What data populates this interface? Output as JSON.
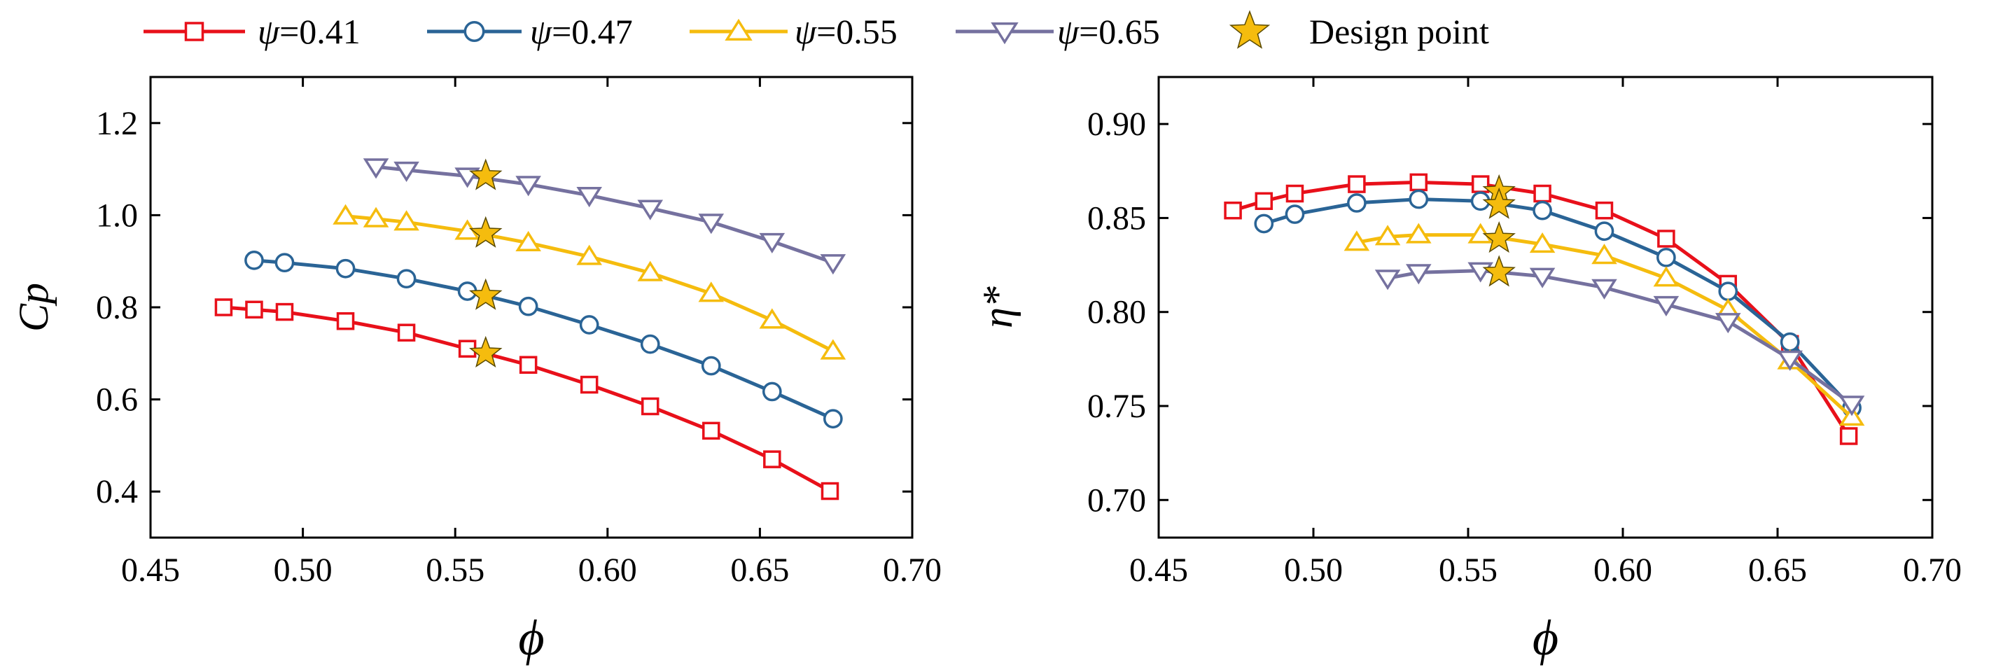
{
  "legend": [
    {
      "symbol": "ψ",
      "label": "=0.41",
      "color": "#e8101a",
      "marker": "square"
    },
    {
      "symbol": "ψ",
      "label": "=0.47",
      "color": "#2a6496",
      "marker": "circle"
    },
    {
      "symbol": "ψ",
      "label": "=0.55",
      "color": "#f5bc0e",
      "marker": "triangle-up"
    },
    {
      "symbol": "ψ",
      "label": "=0.65",
      "color": "#75719f",
      "marker": "triangle-down"
    },
    {
      "symbol": "",
      "label": "Design point",
      "color": "#f5bc0e",
      "marker": "star"
    }
  ],
  "chart_data": [
    {
      "type": "line",
      "xlabel": "ϕ",
      "ylabel": "Cp",
      "xlim": [
        0.45,
        0.7
      ],
      "ylim": [
        0.3,
        1.3
      ],
      "xticks": [
        "0.45",
        "0.50",
        "0.55",
        "0.60",
        "0.65",
        "0.70"
      ],
      "yticks": [
        "0.4",
        "0.6",
        "0.8",
        "1.0",
        "1.2"
      ],
      "grid": false,
      "series": [
        {
          "name": "ψ=0.41",
          "color": "#e8101a",
          "marker": "square",
          "x": [
            0.474,
            0.484,
            0.494,
            0.514,
            0.534,
            0.554,
            0.574,
            0.594,
            0.614,
            0.634,
            0.654,
            0.673
          ],
          "y": [
            0.8,
            0.795,
            0.79,
            0.77,
            0.745,
            0.71,
            0.675,
            0.632,
            0.585,
            0.532,
            0.47,
            0.401
          ]
        },
        {
          "name": "ψ=0.47",
          "color": "#2a6496",
          "marker": "circle",
          "x": [
            0.484,
            0.494,
            0.514,
            0.534,
            0.554,
            0.574,
            0.594,
            0.614,
            0.634,
            0.654,
            0.674
          ],
          "y": [
            0.902,
            0.897,
            0.884,
            0.862,
            0.835,
            0.802,
            0.762,
            0.72,
            0.673,
            0.617,
            0.558
          ]
        },
        {
          "name": "ψ=0.55",
          "color": "#f5bc0e",
          "marker": "triangle-up",
          "x": [
            0.514,
            0.524,
            0.534,
            0.554,
            0.574,
            0.594,
            0.614,
            0.634,
            0.654,
            0.674
          ],
          "y": [
            0.998,
            0.992,
            0.985,
            0.965,
            0.94,
            0.91,
            0.875,
            0.83,
            0.772,
            0.705
          ]
        },
        {
          "name": "ψ=0.65",
          "color": "#75719f",
          "marker": "triangle-down",
          "x": [
            0.524,
            0.534,
            0.554,
            0.574,
            0.594,
            0.614,
            0.634,
            0.654,
            0.674
          ],
          "y": [
            1.105,
            1.098,
            1.085,
            1.067,
            1.043,
            1.015,
            0.985,
            0.943,
            0.897
          ]
        }
      ],
      "design_points": {
        "x": [
          0.56,
          0.56,
          0.56,
          0.56
        ],
        "y": [
          0.7,
          0.825,
          0.96,
          1.085
        ]
      }
    },
    {
      "type": "line",
      "xlabel": "ϕ",
      "ylabel": "η*",
      "xlim": [
        0.45,
        0.7
      ],
      "ylim": [
        0.68,
        0.925
      ],
      "xticks": [
        "0.45",
        "0.50",
        "0.55",
        "0.60",
        "0.65",
        "0.70"
      ],
      "yticks": [
        "0.70",
        "0.75",
        "0.80",
        "0.85",
        "0.90"
      ],
      "grid": false,
      "series": [
        {
          "name": "ψ=0.41",
          "color": "#e8101a",
          "marker": "square",
          "x": [
            0.474,
            0.484,
            0.494,
            0.514,
            0.534,
            0.554,
            0.574,
            0.594,
            0.614,
            0.634,
            0.654,
            0.673
          ],
          "y": [
            0.854,
            0.859,
            0.863,
            0.868,
            0.869,
            0.868,
            0.863,
            0.854,
            0.839,
            0.815,
            0.783,
            0.734
          ]
        },
        {
          "name": "ψ=0.47",
          "color": "#2a6496",
          "marker": "circle",
          "x": [
            0.484,
            0.494,
            0.514,
            0.534,
            0.554,
            0.574,
            0.594,
            0.614,
            0.634,
            0.654,
            0.674
          ],
          "y": [
            0.847,
            0.852,
            0.858,
            0.86,
            0.859,
            0.854,
            0.843,
            0.829,
            0.811,
            0.784,
            0.749
          ]
        },
        {
          "name": "ψ=0.55",
          "color": "#f5bc0e",
          "marker": "triangle-up",
          "x": [
            0.514,
            0.524,
            0.534,
            0.554,
            0.574,
            0.594,
            0.614,
            0.634,
            0.654,
            0.674
          ],
          "y": [
            0.837,
            0.84,
            0.841,
            0.841,
            0.836,
            0.83,
            0.818,
            0.801,
            0.774,
            0.744
          ]
        },
        {
          "name": "ψ=0.65",
          "color": "#75719f",
          "marker": "triangle-down",
          "x": [
            0.524,
            0.534,
            0.554,
            0.574,
            0.594,
            0.614,
            0.634,
            0.654,
            0.674
          ],
          "y": [
            0.818,
            0.821,
            0.822,
            0.819,
            0.813,
            0.804,
            0.795,
            0.775,
            0.751
          ]
        }
      ],
      "design_points": {
        "x": [
          0.56,
          0.56,
          0.56,
          0.56
        ],
        "y": [
          0.864,
          0.857,
          0.839,
          0.821
        ]
      }
    }
  ]
}
